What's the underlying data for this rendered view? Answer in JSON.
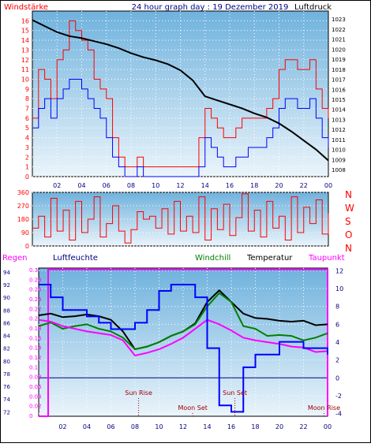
{
  "colors": {
    "red": "#ff0000",
    "blue": "#0000ff",
    "black": "#000000",
    "green": "#008000",
    "magenta": "#ff00ff",
    "darkblue": "#000080",
    "darkred": "#a00000",
    "bg_top": "#6fb2dd",
    "bg_bottom": "#eaf4fb"
  },
  "chart_data": [
    {
      "type": "line",
      "title": "24 hour graph day : 19 Dezember 2019",
      "left_label": "Windstärke",
      "right_label": "Luftdruck",
      "x_ticks": [
        "02",
        "04",
        "06",
        "08",
        "10",
        "12",
        "14",
        "16",
        "18",
        "20",
        "22",
        "00"
      ],
      "left_ticks": [
        "0",
        "1",
        "2",
        "3",
        "4",
        "5",
        "6",
        "7",
        "8",
        "9",
        "10",
        "11",
        "12",
        "13",
        "14",
        "15",
        "16"
      ],
      "right_ticks": [
        "1008",
        "1009",
        "1010",
        "1011",
        "1012",
        "1013",
        "1014",
        "1015",
        "1016",
        "1017",
        "1018",
        "1019",
        "1020",
        "1021",
        "1022",
        "1023"
      ],
      "xlim": [
        0,
        24
      ],
      "left_ylim": [
        0,
        17
      ],
      "right_ylim": [
        1007.3,
        1023.8
      ],
      "series": [
        {
          "name": "Windstärke (Böen)",
          "color": "red",
          "axis": "left",
          "x": [
            0,
            0.5,
            1,
            1.5,
            2,
            2.5,
            3,
            3.5,
            4,
            4.5,
            5,
            5.5,
            6,
            6.5,
            7,
            7.5,
            8,
            8.5,
            9,
            9.5,
            10,
            10.5,
            11,
            11.5,
            12,
            12.5,
            13,
            13.5,
            14,
            14.5,
            15,
            15.5,
            16,
            16.5,
            17,
            17.5,
            18,
            18.5,
            19,
            19.5,
            20,
            20.5,
            21,
            21.5,
            22,
            22.5,
            23,
            23.5,
            24
          ],
          "y": [
            6,
            11,
            10,
            8,
            12,
            13,
            16,
            15,
            14,
            13,
            10,
            9,
            8,
            4,
            2,
            1,
            1,
            2,
            1,
            1,
            1,
            1,
            1,
            1,
            1,
            1,
            1,
            4,
            7,
            6,
            5,
            4,
            4,
            5,
            6,
            6,
            6,
            6,
            7,
            8,
            11,
            12,
            12,
            11,
            11,
            12,
            9,
            7,
            6
          ]
        },
        {
          "name": "Windstärke (Mittel)",
          "color": "blue",
          "axis": "left",
          "x": [
            0,
            0.5,
            1,
            1.5,
            2,
            2.5,
            3,
            3.5,
            4,
            4.5,
            5,
            5.5,
            6,
            6.5,
            7,
            7.5,
            8,
            8.5,
            9,
            9.5,
            10,
            10.5,
            11,
            11.5,
            12,
            12.5,
            13,
            13.5,
            14,
            14.5,
            15,
            15.5,
            16,
            16.5,
            17,
            17.5,
            18,
            18.5,
            19,
            19.5,
            20,
            20.5,
            21,
            21.5,
            22,
            22.5,
            23,
            23.5,
            24
          ],
          "y": [
            5,
            7,
            8,
            6,
            8,
            9,
            10,
            10,
            9,
            8,
            7,
            6,
            4,
            2,
            1,
            0,
            0,
            1,
            0,
            0,
            0,
            0,
            0,
            0,
            0,
            0,
            0,
            1,
            4,
            3,
            2,
            1,
            1,
            2,
            2,
            3,
            3,
            3,
            4,
            5,
            7,
            8,
            8,
            7,
            7,
            8,
            6,
            4,
            3
          ]
        },
        {
          "name": "Luftdruck",
          "color": "black",
          "axis": "right",
          "x": [
            0,
            1,
            2,
            3,
            4,
            5,
            6,
            7,
            8,
            9,
            10,
            11,
            12,
            13,
            14,
            15,
            16,
            17,
            18,
            19,
            20,
            21,
            22,
            23,
            24
          ],
          "y": [
            1022.9,
            1022.3,
            1021.7,
            1021.3,
            1021.1,
            1020.8,
            1020.5,
            1020.1,
            1019.6,
            1019.2,
            1018.9,
            1018.5,
            1017.9,
            1016.9,
            1015.3,
            1014.9,
            1014.5,
            1014.1,
            1013.6,
            1013.2,
            1012.6,
            1011.8,
            1010.9,
            1010.0,
            1008.9
          ]
        }
      ]
    },
    {
      "type": "scatter",
      "title": "",
      "y_ticks": [
        "0",
        "90",
        "180",
        "270",
        "360"
      ],
      "right_labels": [
        "N",
        "W",
        "S",
        "O",
        "N"
      ],
      "xlim": [
        0,
        24
      ],
      "ylim": [
        0,
        360
      ],
      "series": [
        {
          "name": "Windrichtung",
          "color": "red",
          "x": [
            0,
            0.5,
            1,
            1.5,
            2,
            2.5,
            3,
            3.5,
            4,
            4.5,
            5,
            5.5,
            6,
            6.5,
            7,
            7.5,
            8,
            8.5,
            9,
            9.5,
            10,
            10.5,
            11,
            11.5,
            12,
            12.5,
            13,
            13.5,
            14,
            14.5,
            15,
            15.5,
            16,
            16.5,
            17,
            17.5,
            18,
            18.5,
            19,
            19.5,
            20,
            20.5,
            21,
            21.5,
            22,
            22.5,
            23,
            23.5,
            24
          ],
          "y": [
            120,
            200,
            60,
            320,
            100,
            240,
            40,
            300,
            90,
            180,
            330,
            60,
            150,
            270,
            100,
            20,
            110,
            230,
            180,
            200,
            120,
            250,
            80,
            300,
            100,
            200,
            90,
            330,
            40,
            250,
            110,
            280,
            70,
            190,
            350,
            100,
            240,
            60,
            300,
            120,
            200,
            40,
            330,
            90,
            260,
            150,
            310,
            80,
            220
          ]
        }
      ]
    },
    {
      "type": "line",
      "title": "",
      "left_labels": [
        "Regen",
        "Luftfeuchte"
      ],
      "right_labels": [
        "Windchill",
        "Temperatur",
        "Taupunkt"
      ],
      "rain_ticks": [
        "0",
        "0.02",
        "0.04",
        "0.06",
        "0.08",
        "0.1",
        "0.12",
        "0.14",
        "0.16",
        "0.18",
        "0.2",
        "0.22",
        "0.24",
        "0.26",
        "0.28",
        "0.3"
      ],
      "humidity_ticks": [
        "72",
        "74",
        "76",
        "78",
        "80",
        "82",
        "84",
        "86",
        "88",
        "90",
        "92",
        "94"
      ],
      "temp_ticks": [
        "-4",
        "-2",
        "0",
        "2",
        "4",
        "6",
        "8",
        "10",
        "12"
      ],
      "annotations": [
        "Sun Rise",
        "Moon Set",
        "Sun Set",
        "Moon Rise"
      ],
      "xlim": [
        0,
        24
      ],
      "temp_ylim": [
        -4.3,
        12.3
      ],
      "series": [
        {
          "name": "Temperatur",
          "color": "black",
          "x": [
            0,
            1,
            2,
            3,
            4,
            5,
            6,
            7,
            8,
            9,
            10,
            11,
            12,
            13,
            14,
            15,
            16,
            17,
            18,
            19,
            20,
            21,
            22,
            23,
            24
          ],
          "y": [
            7,
            7.2,
            6.8,
            6.9,
            7.1,
            6.9,
            6.5,
            5.2,
            3.2,
            3.5,
            4,
            4.7,
            5.2,
            6.1,
            8.5,
            9.8,
            8.5,
            7.2,
            6.7,
            6.6,
            6.4,
            6.3,
            6.4,
            5.9,
            6
          ]
        },
        {
          "name": "Windchill",
          "color": "green",
          "x": [
            0,
            1,
            2,
            3,
            4,
            5,
            6,
            7,
            8,
            9,
            10,
            11,
            12,
            13,
            14,
            15,
            16,
            17,
            18,
            19,
            20,
            21,
            22,
            23,
            24
          ],
          "y": [
            5.8,
            6.2,
            5.5,
            5.8,
            6.0,
            5.5,
            5.2,
            4.5,
            3.2,
            3.5,
            4,
            4.7,
            5.2,
            6,
            8,
            9.5,
            8.5,
            5.8,
            5.5,
            4.7,
            4.8,
            4.7,
            4.2,
            4.5,
            5
          ]
        },
        {
          "name": "Taupunkt",
          "color": "magenta",
          "x": [
            0,
            1,
            2,
            3,
            4,
            5,
            6,
            7,
            8,
            9,
            10,
            11,
            12,
            13,
            14,
            15,
            16,
            17,
            18,
            19,
            20,
            21,
            22,
            23,
            24
          ],
          "y": [
            6.5,
            6.3,
            5.8,
            5.5,
            5.2,
            5.0,
            4.8,
            4.2,
            2.5,
            2.8,
            3.2,
            3.8,
            4.5,
            5.5,
            6.5,
            6,
            5.3,
            4.5,
            4.2,
            4.0,
            3.8,
            3.5,
            3.4,
            2.9,
            3
          ]
        },
        {
          "name": "Luftfeuchte",
          "color": "blue",
          "x": [
            0,
            1,
            2,
            3,
            4,
            5,
            6,
            7,
            8,
            9,
            10,
            11,
            12,
            13,
            14,
            15,
            16,
            17,
            18,
            19,
            20,
            21,
            22,
            23,
            24
          ],
          "y": [
            92,
            90,
            88,
            88,
            87,
            86,
            85,
            85,
            86,
            88,
            91,
            92,
            92,
            90,
            82,
            73,
            72,
            79,
            81,
            81,
            83,
            83,
            82,
            82,
            81
          ]
        }
      ]
    }
  ]
}
